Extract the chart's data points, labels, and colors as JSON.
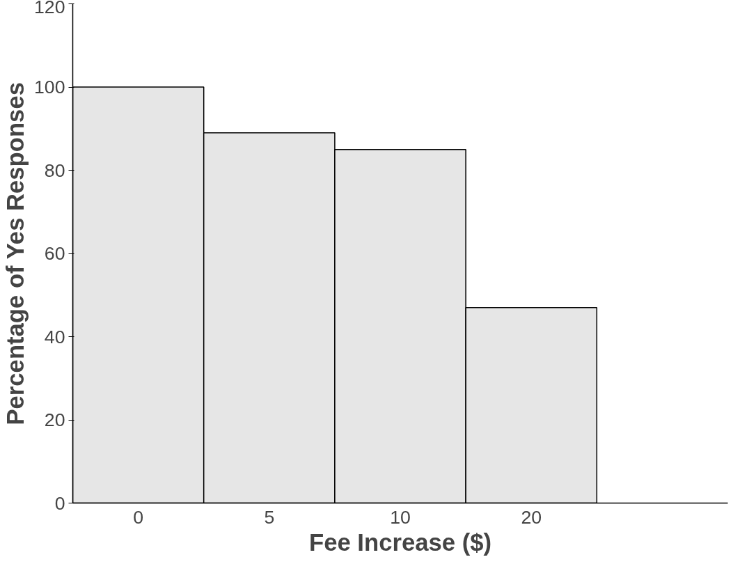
{
  "chart_data": {
    "type": "bar",
    "xlabel": "Fee Increase ($)",
    "ylabel": "Percentage of Yes Responses",
    "categories": [
      "0",
      "5",
      "10",
      "20",
      null
    ],
    "values": [
      100,
      89,
      85,
      47,
      null
    ],
    "color": "#e6e6e6",
    "ylim": [
      0,
      120
    ],
    "yticks": [
      0,
      20,
      40,
      60,
      80,
      100,
      120
    ],
    "grid": false
  }
}
